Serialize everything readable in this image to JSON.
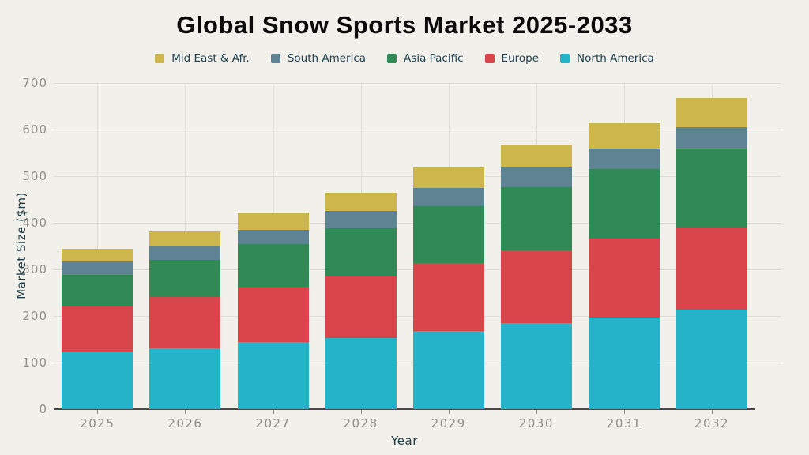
{
  "title": "Global Snow Sports Market 2025-2033",
  "colors": {
    "background": "#f2f0ea",
    "gridline": "#dcdbd5",
    "axis_line": "#474747",
    "tick_label": "#8f8e89",
    "axis_title": "#1d3c47",
    "title_text": "#0b0b0b",
    "legend_text": "#1e4050"
  },
  "chart_data": {
    "type": "bar",
    "stacked": true,
    "title": "Global Snow Sports Market 2025-2033",
    "xlabel": "Year",
    "ylabel": "Market Size ($m)",
    "ylim": [
      0,
      700
    ],
    "yticks": [
      0,
      100,
      200,
      300,
      400,
      500,
      600,
      700
    ],
    "grid": true,
    "legend_position": "top",
    "legend_order": [
      "Mid East & Afr.",
      "South America",
      "Asia Pacific",
      "Europe",
      "North America"
    ],
    "categories": [
      "2025",
      "2026",
      "2027",
      "2028",
      "2029",
      "2030",
      "2031",
      "2032"
    ],
    "series": [
      {
        "name": "North America",
        "color": "#25b3c7",
        "values": [
          122,
          130,
          144,
          152,
          168,
          185,
          197,
          214
        ]
      },
      {
        "name": "Europe",
        "color": "#d8454b",
        "values": [
          98,
          111,
          118,
          132,
          145,
          155,
          169,
          176
        ]
      },
      {
        "name": "Asia Pacific",
        "color": "#2f8a56",
        "values": [
          68,
          80,
          92,
          104,
          122,
          137,
          150,
          169
        ]
      },
      {
        "name": "South America",
        "color": "#5e8494",
        "values": [
          29,
          29,
          31,
          37,
          39,
          41,
          44,
          46
        ]
      },
      {
        "name": "Mid East & Afr.",
        "color": "#cdb64b",
        "values": [
          27,
          31,
          35,
          39,
          44,
          50,
          53,
          62
        ]
      }
    ],
    "totals": [
      344,
      381,
      420,
      464,
      518,
      568,
      613,
      667
    ]
  }
}
